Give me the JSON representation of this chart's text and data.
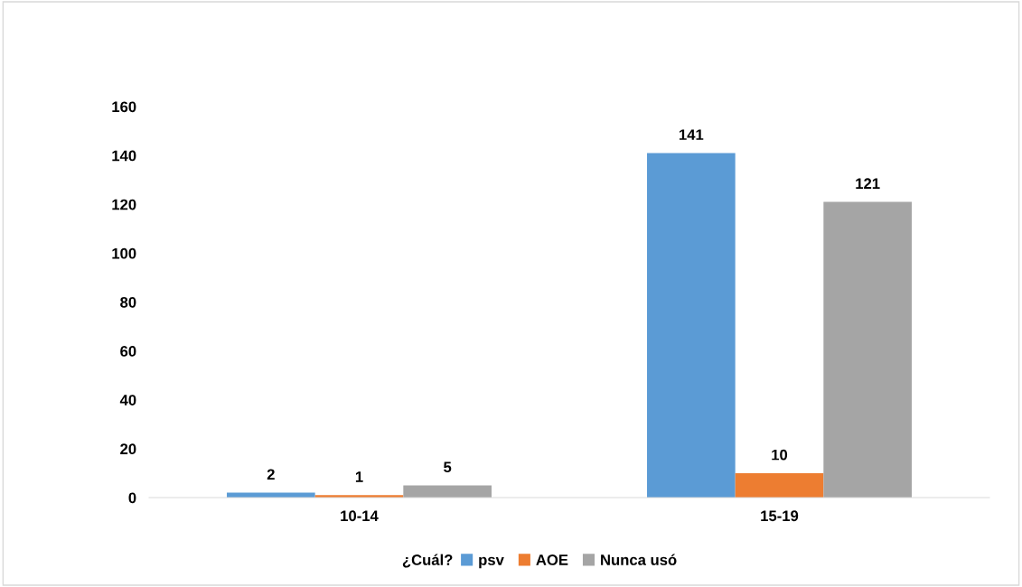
{
  "chart_data": {
    "type": "bar",
    "categories": [
      "10-14",
      "15-19"
    ],
    "series": [
      {
        "name": "psv",
        "color": "#5b9bd5",
        "values": [
          2,
          141
        ]
      },
      {
        "name": "AOE",
        "color": "#ed7d31",
        "values": [
          1,
          10
        ]
      },
      {
        "name": "Nunca usó",
        "color": "#a5a5a5",
        "values": [
          5,
          121
        ]
      }
    ],
    "legend_title": "¿Cuál?",
    "legend": "bottom",
    "ylim": [
      0,
      160
    ],
    "yticks": [
      0,
      20,
      40,
      60,
      80,
      100,
      120,
      140,
      160
    ],
    "grid": false,
    "data_labels": true
  }
}
